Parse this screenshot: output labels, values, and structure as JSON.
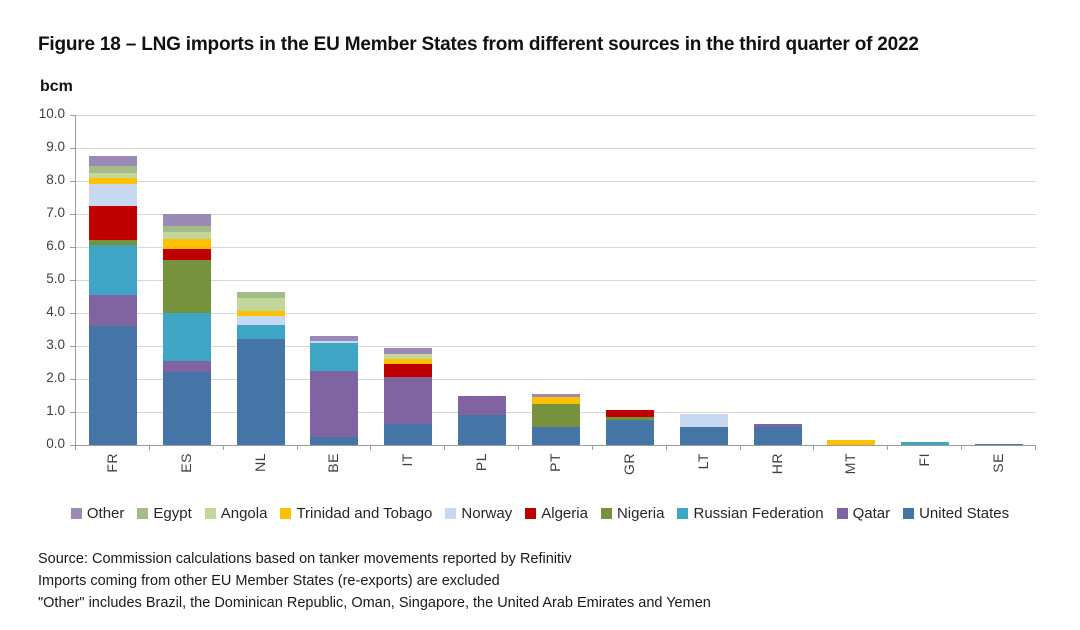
{
  "figure": {
    "title": "Figure 18 – LNG imports in the EU Member States from different sources in the third quarter of 2022",
    "unit_label": "bcm"
  },
  "chart_data": {
    "type": "bar",
    "stacked": true,
    "title": "Figure 18 – LNG imports in the EU Member States from different sources in the third quarter of 2022",
    "ylabel": "bcm",
    "xlabel": "",
    "ylim": [
      0,
      10
    ],
    "ytick_step": 1,
    "ytick_labels": [
      "0.0",
      "1.0",
      "2.0",
      "3.0",
      "4.0",
      "5.0",
      "6.0",
      "7.0",
      "8.0",
      "9.0",
      "10.0"
    ],
    "grid": true,
    "legend_position": "bottom",
    "categories": [
      "FR",
      "ES",
      "NL",
      "BE",
      "IT",
      "PL",
      "PT",
      "GR",
      "LT",
      "HR",
      "MT",
      "FI",
      "SE"
    ],
    "series": [
      {
        "name": "United States",
        "color": "#4575a7",
        "values": [
          3.6,
          2.2,
          3.2,
          0.25,
          0.65,
          0.9,
          0.55,
          0.75,
          0.55,
          0.55,
          0,
          0,
          0.03
        ]
      },
      {
        "name": "Qatar",
        "color": "#8064a2",
        "values": [
          0.95,
          0.35,
          0,
          2.0,
          1.4,
          0.6,
          0,
          0,
          0,
          0.1,
          0,
          0,
          0
        ]
      },
      {
        "name": "Russian Federation",
        "color": "#3fa5c5",
        "values": [
          1.5,
          1.45,
          0.45,
          0.85,
          0,
          0,
          0,
          0,
          0,
          0,
          0,
          0.1,
          0
        ]
      },
      {
        "name": "Nigeria",
        "color": "#76923c",
        "values": [
          0.15,
          1.6,
          0,
          0,
          0,
          0,
          0.7,
          0.1,
          0,
          0,
          0,
          0,
          0
        ]
      },
      {
        "name": "Algeria",
        "color": "#c00000",
        "values": [
          1.05,
          0.35,
          0,
          0,
          0.4,
          0,
          0,
          0.2,
          0,
          0,
          0,
          0,
          0
        ]
      },
      {
        "name": "Norway",
        "color": "#c6d9f1",
        "values": [
          0.65,
          0,
          0.25,
          0.05,
          0,
          0,
          0,
          0,
          0.4,
          0,
          0,
          0,
          0
        ]
      },
      {
        "name": "Trinidad and Tobago",
        "color": "#fec000",
        "values": [
          0.2,
          0.3,
          0.15,
          0,
          0.15,
          0,
          0.2,
          0,
          0,
          0,
          0.15,
          0,
          0
        ]
      },
      {
        "name": "Angola",
        "color": "#c3d69b",
        "values": [
          0.15,
          0.2,
          0.4,
          0,
          0.15,
          0,
          0,
          0,
          0,
          0,
          0,
          0,
          0
        ]
      },
      {
        "name": "Egypt",
        "color": "#a4bc88",
        "values": [
          0.2,
          0.2,
          0.2,
          0,
          0,
          0,
          0,
          0,
          0,
          0,
          0,
          0,
          0
        ]
      },
      {
        "name": "Other",
        "color": "#9a8ab5",
        "values": [
          0.3,
          0.35,
          0,
          0.15,
          0.2,
          0,
          0.1,
          0,
          0,
          0,
          0,
          0,
          0
        ]
      }
    ],
    "legend_order": [
      "Other",
      "Egypt",
      "Angola",
      "Trinidad and Tobago",
      "Norway",
      "Algeria",
      "Nigeria",
      "Russian Federation",
      "Qatar",
      "United States"
    ]
  },
  "footnotes": [
    "Source: Commission calculations based on tanker movements reported by Refinitiv",
    "Imports coming from other EU Member States (re-exports) are excluded",
    "\"Other\" includes Brazil, the Dominican Republic, Oman, Singapore, the United Arab Emirates and Yemen"
  ]
}
